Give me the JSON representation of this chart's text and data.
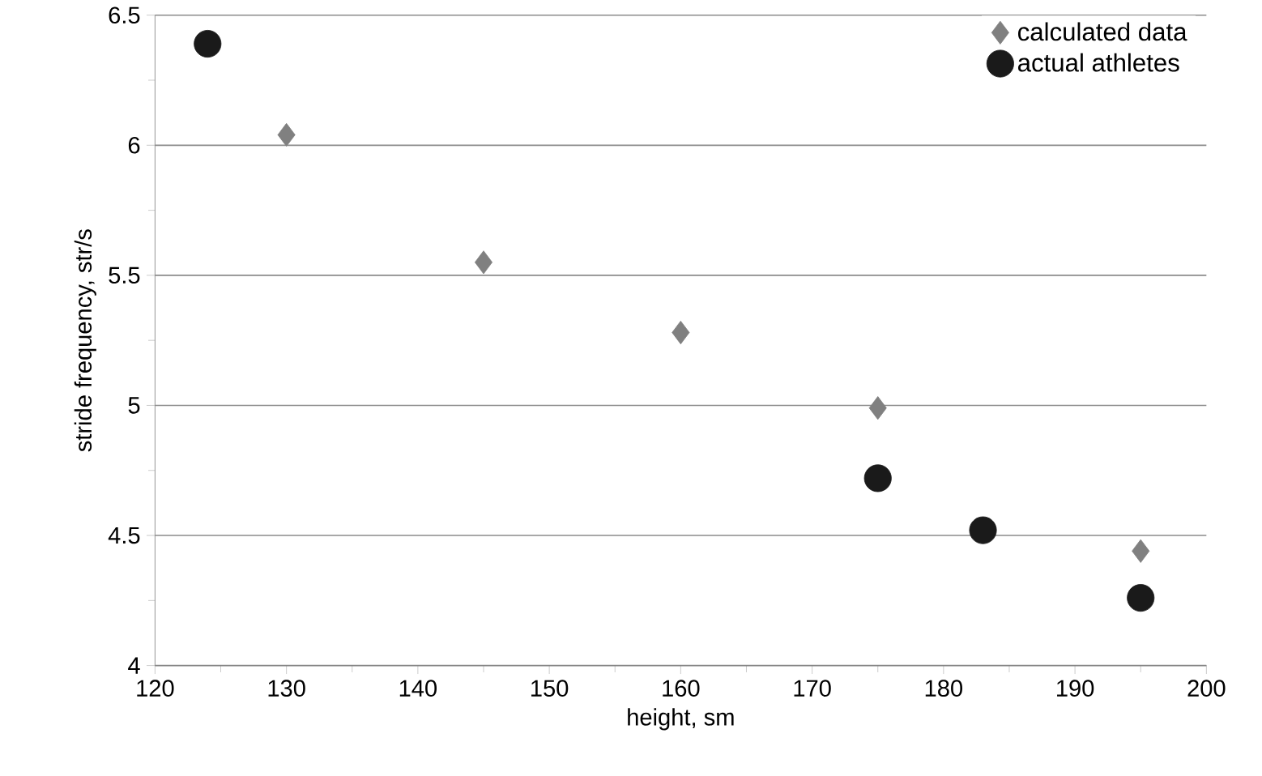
{
  "chart_data": {
    "type": "scatter",
    "xlabel": "height, sm",
    "ylabel": "stride frequency,  str/s",
    "xlim": [
      120,
      200
    ],
    "xticks": [
      120,
      130,
      140,
      150,
      160,
      170,
      180,
      190,
      200
    ],
    "ylim": [
      4,
      6.5
    ],
    "yticks": [
      4,
      4.5,
      5,
      5.5,
      6,
      6.5
    ],
    "grid": "y",
    "legend": "top right",
    "series": [
      {
        "name": "calculated data",
        "color": "#808080",
        "marker": "diamond",
        "x": [
          130,
          145,
          160,
          175,
          195
        ],
        "values": [
          6.04,
          5.55,
          5.28,
          4.99,
          4.44
        ]
      },
      {
        "name": "actual athletes",
        "color": "#1a1a1a",
        "marker": "circle",
        "x": [
          124,
          175,
          183,
          195
        ],
        "values": [
          6.39,
          4.72,
          4.52,
          4.26
        ]
      }
    ]
  }
}
